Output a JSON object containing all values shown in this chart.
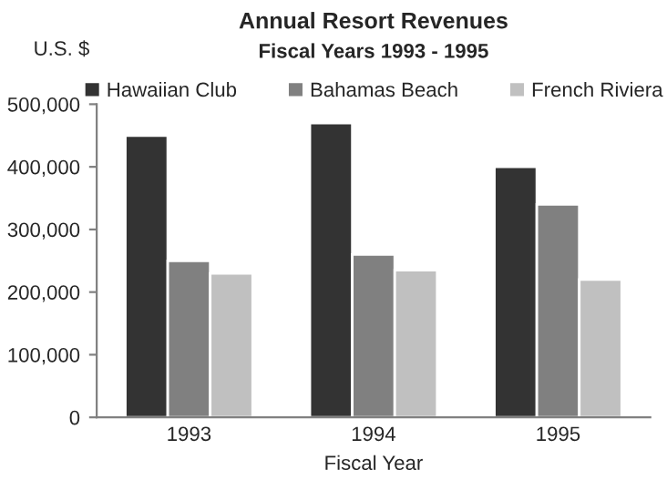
{
  "chart_data": {
    "type": "bar",
    "title": "Annual Resort Revenues",
    "subtitle": "Fiscal Years 1993 - 1995",
    "xlabel": "Fiscal Year",
    "ylabel": "U.S. $",
    "categories": [
      "1993",
      "1994",
      "1995"
    ],
    "series": [
      {
        "name": "Hawaiian Club",
        "color": "#333333",
        "values": [
          450000,
          470000,
          400000
        ]
      },
      {
        "name": "Bahamas Beach",
        "color": "#808080",
        "values": [
          250000,
          260000,
          340000
        ]
      },
      {
        "name": "French Riviera",
        "color": "#c0c0c0",
        "values": [
          230000,
          235000,
          220000
        ]
      }
    ],
    "ylim": [
      0,
      500000
    ],
    "yticks": [
      {
        "value": 0,
        "label": "0"
      },
      {
        "value": 100000,
        "label": "100,000"
      },
      {
        "value": 200000,
        "label": "200,000"
      },
      {
        "value": 300000,
        "label": "300,000"
      },
      {
        "value": 400000,
        "label": "400,000"
      },
      {
        "value": 500000,
        "label": "500,000"
      }
    ],
    "grid": false,
    "legend": "top"
  }
}
